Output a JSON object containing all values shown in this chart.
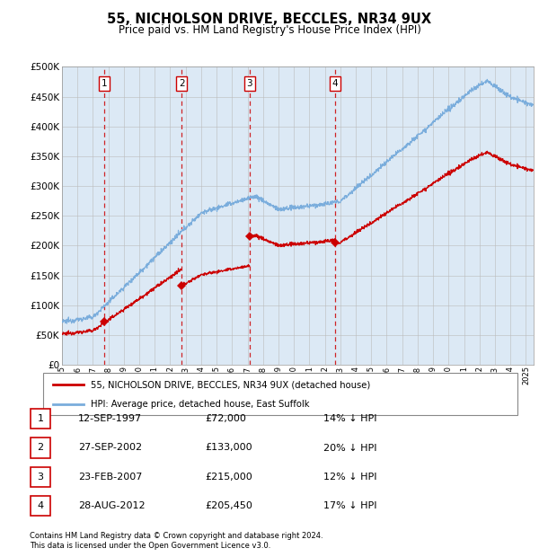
{
  "title": "55, NICHOLSON DRIVE, BECCLES, NR34 9UX",
  "subtitle": "Price paid vs. HM Land Registry's House Price Index (HPI)",
  "footer1": "Contains HM Land Registry data © Crown copyright and database right 2024.",
  "footer2": "This data is licensed under the Open Government Licence v3.0.",
  "legend_line1": "55, NICHOLSON DRIVE, BECCLES, NR34 9UX (detached house)",
  "legend_line2": "HPI: Average price, detached house, East Suffolk",
  "transactions": [
    {
      "num": 1,
      "date": "12-SEP-1997",
      "price": 72000,
      "price_str": "£72,000",
      "pct": "14%",
      "year": 1997.71
    },
    {
      "num": 2,
      "date": "27-SEP-2002",
      "price": 133000,
      "price_str": "£133,000",
      "pct": "20%",
      "year": 2002.74
    },
    {
      "num": 3,
      "date": "23-FEB-2007",
      "price": 215000,
      "price_str": "£215,000",
      "pct": "12%",
      "year": 2007.14
    },
    {
      "num": 4,
      "date": "28-AUG-2012",
      "price": 205450,
      "price_str": "£205,450",
      "pct": "17%",
      "year": 2012.65
    }
  ],
  "hpi_color": "#7aaddc",
  "price_color": "#cc0000",
  "dashed_color": "#cc0000",
  "bg_color": "#dce9f5",
  "grid_color": "#bbbbbb",
  "ylim": [
    0,
    500000
  ],
  "yticks": [
    0,
    50000,
    100000,
    150000,
    200000,
    250000,
    300000,
    350000,
    400000,
    450000,
    500000
  ],
  "xmin": 1995,
  "xmax": 2025.5
}
